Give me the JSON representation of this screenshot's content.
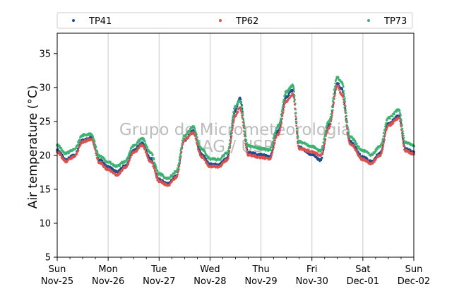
{
  "chart_data": {
    "type": "scatter",
    "ylabel": "Air temperature (°C)",
    "xlabel": "",
    "ylim": [
      5,
      38
    ],
    "yticks": [
      5,
      10,
      15,
      20,
      25,
      30,
      35
    ],
    "xlim": [
      "2018-11-25 00:00",
      "2018-12-02 00:00"
    ],
    "x_ticks": [
      {
        "day": "Sun",
        "date": "Nov-25"
      },
      {
        "day": "Mon",
        "date": "Nov-26"
      },
      {
        "day": "Tue",
        "date": "Nov-27"
      },
      {
        "day": "Wed",
        "date": "Nov-28"
      },
      {
        "day": "Thu",
        "date": "Nov-29"
      },
      {
        "day": "Fri",
        "date": "Nov-30"
      },
      {
        "day": "Sat",
        "date": "Dec-01"
      },
      {
        "day": "Sun",
        "date": "Dec-02"
      }
    ],
    "grid": "vertical at day ticks",
    "legend_position": "top, above plot",
    "watermark": [
      "Grupo de Micrometeorologia",
      "IAG / USP"
    ],
    "series": [
      {
        "name": "TP41",
        "color": "#1f4e8c",
        "points": [
          [
            "11-25 00:00",
            20.8
          ],
          [
            "11-25 04:00",
            19.4
          ],
          [
            "11-25 08:00",
            20.0
          ],
          [
            "11-25 12:00",
            22.3
          ],
          [
            "11-25 16:00",
            22.6
          ],
          [
            "11-25 20:00",
            19.3
          ],
          [
            "11-26 00:00",
            18.3
          ],
          [
            "11-26 04:00",
            17.6
          ],
          [
            "11-26 08:00",
            18.4
          ],
          [
            "11-26 12:00",
            20.7
          ],
          [
            "11-26 16:00",
            21.8
          ],
          [
            "11-26 20:00",
            19.5
          ],
          [
            "11-27 00:00",
            16.5
          ],
          [
            "11-27 04:00",
            15.8
          ],
          [
            "11-27 08:00",
            16.9
          ],
          [
            "11-27 12:00",
            22.2
          ],
          [
            "11-27 16:00",
            23.6
          ],
          [
            "11-27 20:00",
            20.2
          ],
          [
            "11-28 00:00",
            18.7
          ],
          [
            "11-28 04:00",
            18.6
          ],
          [
            "11-28 08:00",
            19.6
          ],
          [
            "11-28 12:00",
            26.6
          ],
          [
            "11-28 14:00",
            28.4
          ],
          [
            "11-28 18:00",
            20.4
          ],
          [
            "11-29 00:00",
            20.1
          ],
          [
            "11-29 04:00",
            19.8
          ],
          [
            "11-29 08:00",
            23.5
          ],
          [
            "11-29 12:00",
            28.7
          ],
          [
            "11-29 15:00",
            29.6
          ],
          [
            "11-29 18:00",
            21.2
          ],
          [
            "11-30 00:00",
            20.1
          ],
          [
            "11-30 04:00",
            19.3
          ],
          [
            "11-30 08:00",
            24.4
          ],
          [
            "11-30 12:00",
            30.6
          ],
          [
            "11-30 14:00",
            29.8
          ],
          [
            "11-30 18:00",
            22.0
          ],
          [
            "12-01 00:00",
            19.8
          ],
          [
            "12-01 04:00",
            19.1
          ],
          [
            "12-01 08:00",
            20.3
          ],
          [
            "12-01 12:00",
            24.7
          ],
          [
            "12-01 17:00",
            25.8
          ],
          [
            "12-01 20:00",
            21.0
          ],
          [
            "12-02 00:00",
            20.5
          ]
        ]
      },
      {
        "name": "TP62",
        "color": "#d9534f",
        "points": [
          [
            "11-25 00:00",
            20.5
          ],
          [
            "11-25 04:00",
            19.1
          ],
          [
            "11-25 08:00",
            19.8
          ],
          [
            "11-25 12:00",
            22.0
          ],
          [
            "11-25 16:00",
            22.4
          ],
          [
            "11-25 20:00",
            18.9
          ],
          [
            "11-26 00:00",
            17.9
          ],
          [
            "11-26 04:00",
            17.1
          ],
          [
            "11-26 08:00",
            18.2
          ],
          [
            "11-26 12:00",
            20.4
          ],
          [
            "11-26 16:00",
            21.5
          ],
          [
            "11-26 20:00",
            19.1
          ],
          [
            "11-27 00:00",
            16.2
          ],
          [
            "11-27 04:00",
            15.6
          ],
          [
            "11-27 08:00",
            16.7
          ],
          [
            "11-27 12:00",
            22.3
          ],
          [
            "11-27 16:00",
            23.3
          ],
          [
            "11-27 20:00",
            19.8
          ],
          [
            "11-28 00:00",
            18.4
          ],
          [
            "11-28 04:00",
            18.3
          ],
          [
            "11-28 08:00",
            19.3
          ],
          [
            "11-28 12:00",
            25.8
          ],
          [
            "11-28 14:00",
            27.0
          ],
          [
            "11-28 18:00",
            20.1
          ],
          [
            "11-29 00:00",
            19.7
          ],
          [
            "11-29 04:00",
            19.5
          ],
          [
            "11-29 08:00",
            23.1
          ],
          [
            "11-29 12:00",
            28.0
          ],
          [
            "11-29 15:00",
            29.0
          ],
          [
            "11-29 18:00",
            21.0
          ],
          [
            "11-30 00:00",
            20.6
          ],
          [
            "11-30 04:00",
            20.0
          ],
          [
            "11-30 08:00",
            24.0
          ],
          [
            "11-30 12:00",
            30.2
          ],
          [
            "11-30 14:00",
            29.0
          ],
          [
            "11-30 18:00",
            21.7
          ],
          [
            "12-01 00:00",
            19.4
          ],
          [
            "12-01 04:00",
            18.8
          ],
          [
            "12-01 08:00",
            20.0
          ],
          [
            "12-01 12:00",
            24.4
          ],
          [
            "12-01 17:00",
            25.5
          ],
          [
            "12-01 20:00",
            20.7
          ],
          [
            "12-02 00:00",
            20.2
          ]
        ]
      },
      {
        "name": "TP73",
        "color": "#3cb371",
        "points": [
          [
            "11-25 00:00",
            21.5
          ],
          [
            "11-25 04:00",
            20.3
          ],
          [
            "11-25 08:00",
            20.9
          ],
          [
            "11-25 12:00",
            23.0
          ],
          [
            "11-25 16:00",
            23.1
          ],
          [
            "11-25 20:00",
            19.9
          ],
          [
            "11-26 00:00",
            19.0
          ],
          [
            "11-26 04:00",
            18.4
          ],
          [
            "11-26 08:00",
            19.1
          ],
          [
            "11-26 12:00",
            21.4
          ],
          [
            "11-26 16:00",
            22.5
          ],
          [
            "11-26 20:00",
            20.4
          ],
          [
            "11-27 00:00",
            17.3
          ],
          [
            "11-27 04:00",
            16.6
          ],
          [
            "11-27 08:00",
            17.6
          ],
          [
            "11-27 12:00",
            22.9
          ],
          [
            "11-27 16:00",
            24.2
          ],
          [
            "11-27 20:00",
            21.0
          ],
          [
            "11-28 00:00",
            19.5
          ],
          [
            "11-28 04:00",
            19.4
          ],
          [
            "11-28 08:00",
            20.3
          ],
          [
            "11-28 12:00",
            27.2
          ],
          [
            "11-28 14:00",
            28.0
          ],
          [
            "11-28 18:00",
            21.4
          ],
          [
            "11-29 00:00",
            21.0
          ],
          [
            "11-29 04:00",
            20.8
          ],
          [
            "11-29 08:00",
            24.3
          ],
          [
            "11-29 12:00",
            29.4
          ],
          [
            "11-29 15:00",
            30.3
          ],
          [
            "11-29 18:00",
            22.0
          ],
          [
            "11-30 00:00",
            21.3
          ],
          [
            "11-30 04:00",
            20.7
          ],
          [
            "11-30 08:00",
            25.0
          ],
          [
            "11-30 12:00",
            31.5
          ],
          [
            "11-30 14:00",
            30.8
          ],
          [
            "11-30 18:00",
            22.7
          ],
          [
            "12-01 00:00",
            20.7
          ],
          [
            "12-01 04:00",
            20.1
          ],
          [
            "12-01 08:00",
            21.3
          ],
          [
            "12-01 12:00",
            25.5
          ],
          [
            "12-01 17:00",
            26.7
          ],
          [
            "12-01 20:00",
            21.9
          ],
          [
            "12-02 00:00",
            21.4
          ]
        ]
      }
    ]
  }
}
